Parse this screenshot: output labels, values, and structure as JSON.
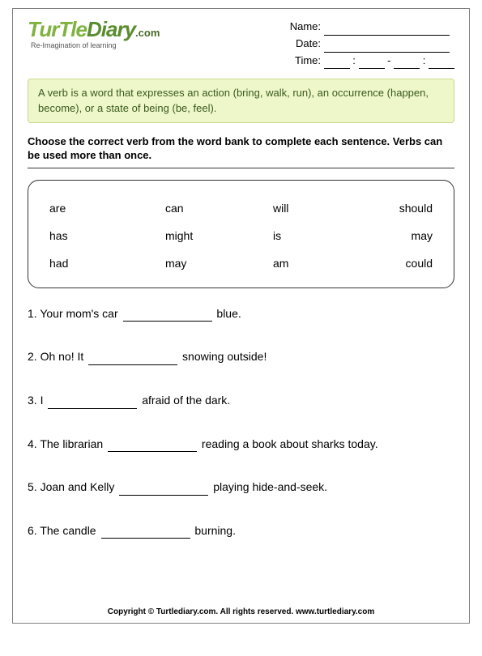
{
  "logo": {
    "part1": "TurTle",
    "part2": "Diary",
    "dotcom": ".com"
  },
  "tagline": "Re-Imagination of learning",
  "meta": {
    "name_label": "Name:",
    "date_label": "Date:",
    "time_label": "Time:",
    "colon": ":",
    "dash": "-"
  },
  "definition": "A verb is a word that expresses an action (bring, walk, run), an occurrence (happen, become), or a state of being (be, feel).",
  "instructions": "Choose the correct verb from the word bank to complete each sentence. Verbs can be used more than once.",
  "wordbank": {
    "rows": [
      [
        "are",
        "can",
        "will",
        "should"
      ],
      [
        "has",
        "might",
        "is",
        "may"
      ],
      [
        "had",
        "may",
        "am",
        "could"
      ]
    ]
  },
  "questions": [
    {
      "num": "1.",
      "pre": "Your mom's car ",
      "post": " blue."
    },
    {
      "num": "2.",
      "pre": "Oh no! It ",
      "post": " snowing outside!"
    },
    {
      "num": "3.",
      "pre": "I ",
      "post": " afraid of the dark."
    },
    {
      "num": "4.",
      "pre": "The librarian ",
      "post": " reading a book about sharks today."
    },
    {
      "num": "5.",
      "pre": "Joan and Kelly ",
      "post": " playing hide-and-seek."
    },
    {
      "num": "6.",
      "pre": "The candle ",
      "post": " burning."
    }
  ],
  "footer": "Copyright © Turtlediary.com. All rights reserved. www.turtlediary.com",
  "colors": {
    "definition_bg": "#eef7c9",
    "definition_border": "#c6d98a",
    "logo_green": "#7fb23f"
  }
}
